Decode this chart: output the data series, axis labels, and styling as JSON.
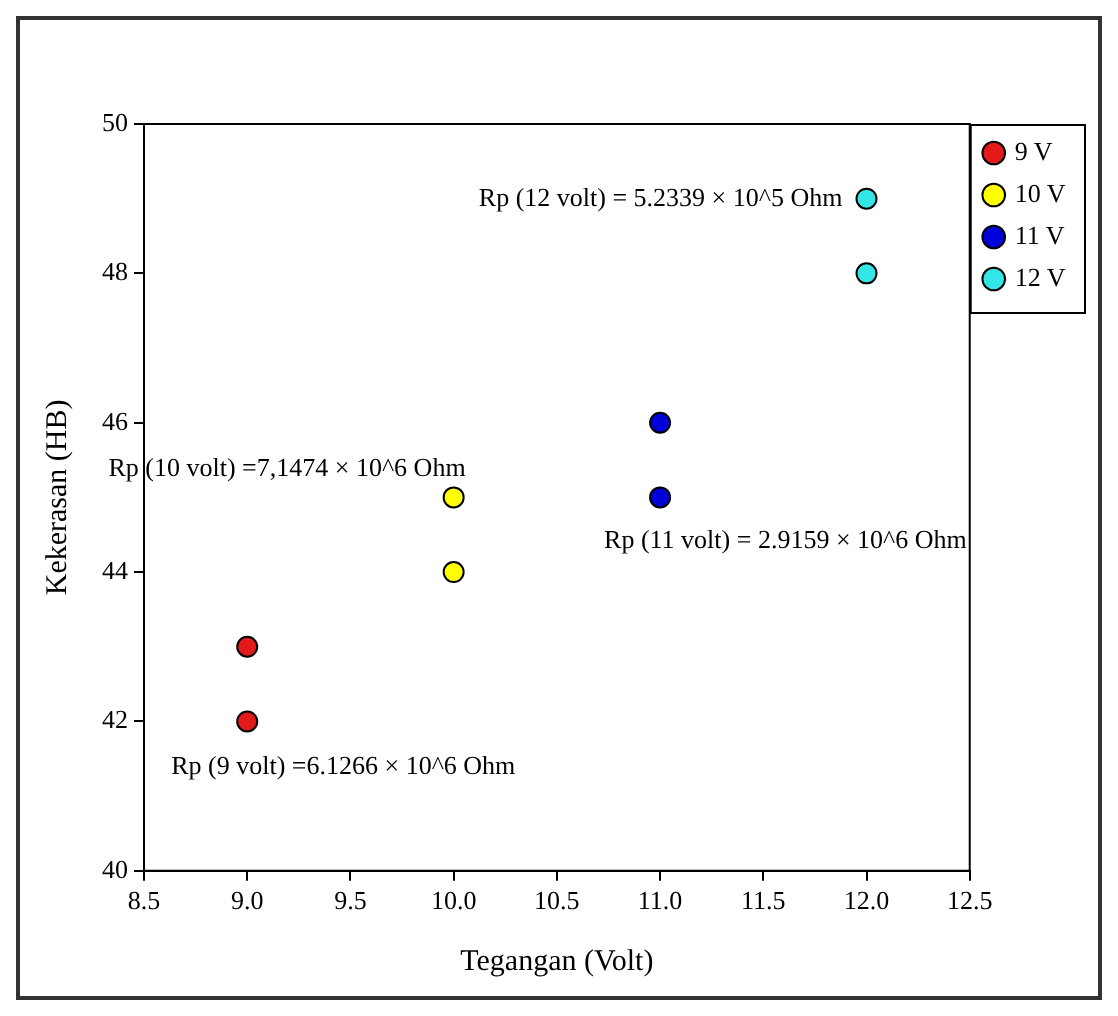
{
  "chart_data": {
    "type": "scatter",
    "xlabel": "Tegangan (Volt)",
    "ylabel": "Kekerasan (HB)",
    "series": [
      {
        "name": "9 V",
        "color": "#e41a1a",
        "x": [
          9,
          9
        ],
        "values": [
          42,
          43
        ]
      },
      {
        "name": "10 V",
        "color": "#ffff00",
        "x": [
          10,
          10
        ],
        "values": [
          44,
          45
        ]
      },
      {
        "name": "11 V",
        "color": "#0000d8",
        "x": [
          11,
          11
        ],
        "values": [
          45,
          46
        ]
      },
      {
        "name": "12 V",
        "color": "#33e6e6",
        "x": [
          12,
          12
        ],
        "values": [
          48,
          49
        ]
      }
    ],
    "xlim": [
      8.5,
      12.5
    ],
    "xticks": [
      8.5,
      {
        "value": 9,
        "label": "9.0"
      },
      9.5,
      {
        "value": 10,
        "label": "10.0"
      },
      10.5,
      {
        "value": 11,
        "label": "11.0"
      },
      11.5,
      {
        "value": 12,
        "label": "12.0"
      },
      12.5
    ],
    "ylim": [
      40,
      50
    ],
    "yticks": [
      40,
      42,
      44,
      46,
      48,
      50
    ],
    "grid": false,
    "legend": "top right",
    "marker": "circle",
    "annotations": [
      {
        "text": "Rp (12 volt) = 5.2339 × 10^5 Ohm",
        "x": 12,
        "y": 49
      },
      {
        "text": "Rp (10 volt) =7,1474 × 10^6 Ohm",
        "x": 10,
        "y": 45
      },
      {
        "text": "Rp (11 volt) = 2.9159 × 10^6 Ohm",
        "x": 11,
        "y": 45
      },
      {
        "text": "Rp (9 volt) =6.1266 × 10^6 Ohm",
        "x": 9,
        "y": 42
      }
    ]
  }
}
